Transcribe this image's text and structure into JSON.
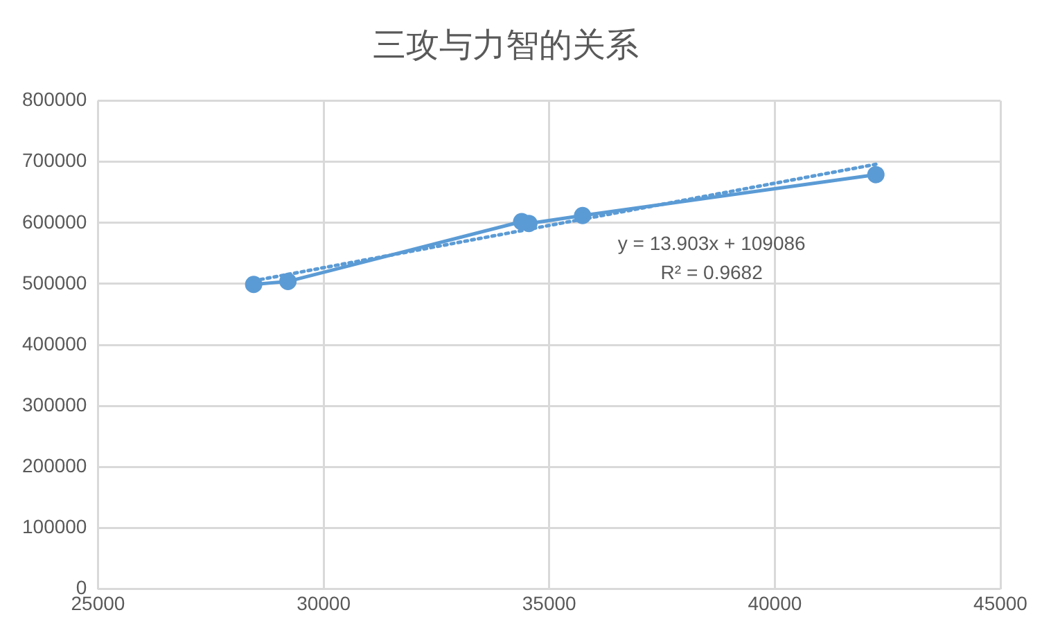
{
  "chart_data": {
    "type": "scatter",
    "title": "三攻与力智的关系",
    "series": [
      {
        "type": "line",
        "color": "#5b9bd5",
        "marker": "circle",
        "line_style": "solid",
        "x": [
          28450,
          29210,
          34390,
          34550,
          35740,
          42240
        ],
        "values": [
          499000,
          504000,
          602000,
          599000,
          612000,
          679000
        ]
      },
      {
        "type": "line",
        "color": "#5b9bd5",
        "marker": "none",
        "line_style": "dotted",
        "x": [
          28450,
          42240
        ],
        "values": [
          505000,
          696000
        ]
      }
    ],
    "xlim": [
      25000,
      45000
    ],
    "xticks": [
      25000,
      30000,
      35000,
      40000,
      45000
    ],
    "ylim": [
      0,
      800000
    ],
    "yticks": [
      0,
      100000,
      200000,
      300000,
      400000,
      500000,
      600000,
      700000,
      800000
    ],
    "grid": true,
    "legend": false,
    "annotations": [
      "y = 13.903x + 109086",
      "R² = 0.9682"
    ]
  }
}
